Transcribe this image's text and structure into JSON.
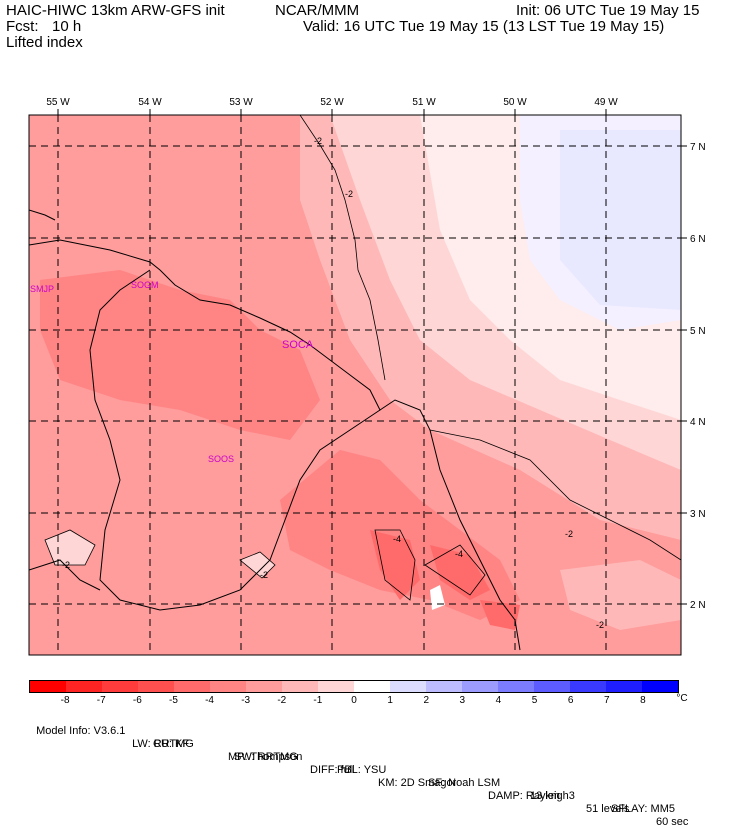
{
  "header": {
    "model": "HAIC-HIWC 13km ARW-GFS init",
    "org": "NCAR/MMM",
    "init": "Init: 06 UTC Tue 19 May 15",
    "fcst_label": "Fcst:",
    "fcst_value": "10 h",
    "valid": "Valid: 16 UTC Tue 19 May 15 (13 LST Tue 19 May 15)",
    "field": "Lifted index"
  },
  "map": {
    "lon_labels": [
      "55 W",
      "54 W",
      "53 W",
      "52 W",
      "51 W",
      "50 W",
      "49 W"
    ],
    "lat_labels": [
      "7 N",
      "6 N",
      "5 N",
      "4 N",
      "3 N",
      "2 N"
    ],
    "stations": [
      "SMJP",
      "SOGM",
      "SOCA",
      "SOOS"
    ],
    "contour_labels": [
      "-2",
      "-2",
      "-2",
      "-2",
      "-2",
      "-2",
      "-4",
      "-4"
    ]
  },
  "colorbar": {
    "ticks": [
      "-8",
      "-7",
      "-6",
      "-5",
      "-4",
      "-3",
      "-2",
      "-1",
      "0",
      "1",
      "2",
      "3",
      "4",
      "5",
      "6",
      "7",
      "8"
    ],
    "unit": "°C",
    "colors": [
      "#ff0000",
      "#ff2424",
      "#ff3c3c",
      "#ff5050",
      "#ff6a6a",
      "#ff8484",
      "#ff9c9c",
      "#ffb8b8",
      "#ffd6d6",
      "#ffffff",
      "#dcdcff",
      "#bcbcff",
      "#9c9cff",
      "#7c7cff",
      "#5c5cff",
      "#3a3aff",
      "#1e1eff",
      "#0000ff"
    ]
  },
  "footer": {
    "line1": [
      "Model Info: V3.6.1",
      "CU: KF",
      "MP: Thompson",
      "PBL: YSU",
      "SF: Noah LSM",
      "13 km",
      "51 levels",
      "60 sec"
    ],
    "line2": [
      "LW: RRTMG",
      "SW: RRTMG",
      "DIFF: full",
      "KM: 2D Smagor",
      "DAMP: Rayleigh3",
      "SFLAY: MM5"
    ]
  }
}
